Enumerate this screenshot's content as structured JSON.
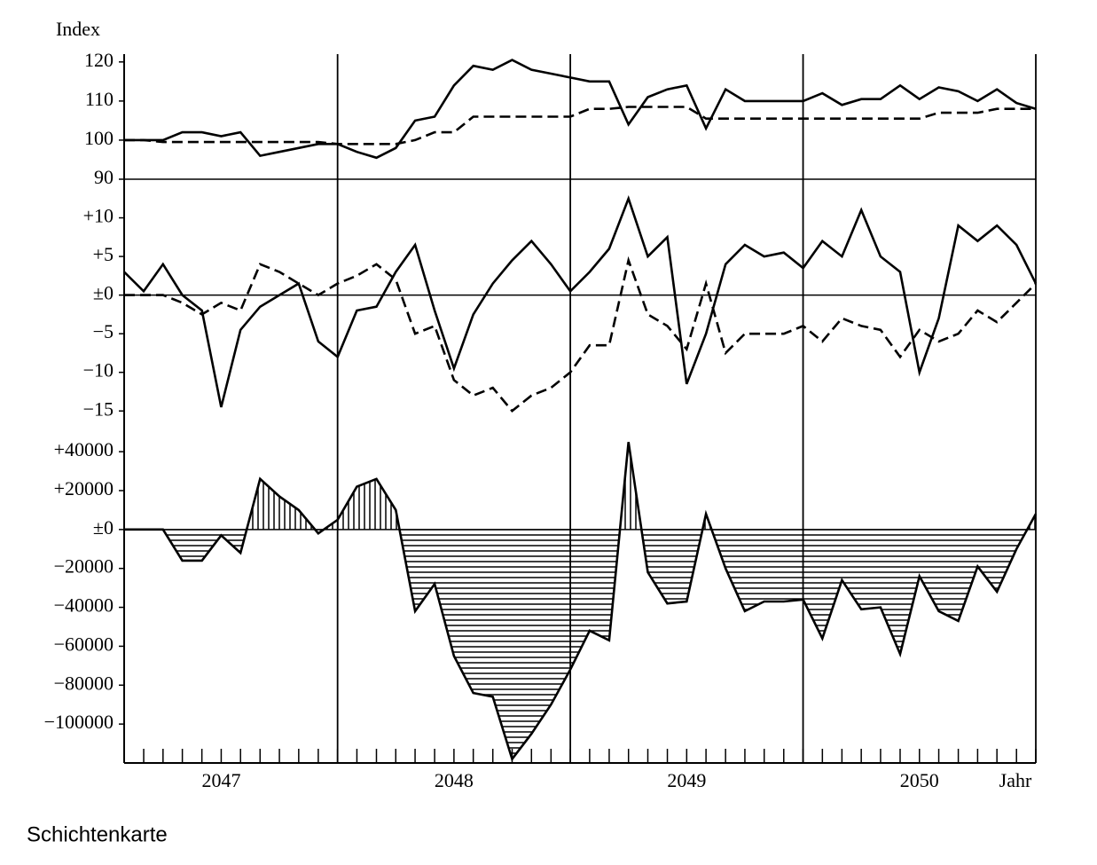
{
  "caption": "Schichtenkarte",
  "chart_data": [
    {
      "type": "line",
      "ylabel": "Index",
      "x": [
        2047.083,
        2047.167,
        2047.25,
        2047.333,
        2047.417,
        2047.5,
        2047.583,
        2047.667,
        2047.75,
        2047.833,
        2047.917,
        2048,
        2048.083,
        2048.167,
        2048.25,
        2048.333,
        2048.417,
        2048.5,
        2048.583,
        2048.667,
        2048.75,
        2048.833,
        2048.917,
        2049,
        2049.083,
        2049.167,
        2049.25,
        2049.333,
        2049.417,
        2049.5,
        2049.583,
        2049.667,
        2049.75,
        2049.833,
        2049.917,
        2050,
        2050.083,
        2050.167,
        2050.25,
        2050.333,
        2050.417,
        2050.5,
        2050.583,
        2050.667,
        2050.75,
        2050.833,
        2050.917,
        2051
      ],
      "xlim": [
        2047.083,
        2051
      ],
      "ylim": [
        90,
        122
      ],
      "yticks": [
        90,
        100,
        110,
        120
      ],
      "hline": 90,
      "year_lines": [
        2048,
        2049,
        2050,
        2051
      ],
      "series": [
        {
          "color": "#000000",
          "style": "solid",
          "values": [
            100,
            100,
            100,
            102,
            102,
            101,
            102,
            96,
            97,
            98,
            99,
            99,
            97,
            95.5,
            98,
            105,
            106,
            114,
            119,
            118,
            120.5,
            118,
            117,
            116,
            115,
            115,
            104,
            111,
            113,
            114,
            103,
            113,
            110,
            110,
            110,
            110,
            112,
            109,
            110.5,
            110.5,
            114,
            110.5,
            113.5,
            112.5,
            110,
            113,
            109.5,
            108
          ]
        },
        {
          "color": "#000000",
          "style": "dashed",
          "values": [
            100,
            100,
            99.5,
            99.5,
            99.5,
            99.5,
            99.5,
            99.5,
            99.5,
            99.5,
            99.5,
            99,
            99,
            99,
            99,
            100,
            102,
            102,
            106,
            106,
            106,
            106,
            106,
            106,
            108,
            108,
            108.5,
            108.5,
            108.5,
            108.5,
            105.5,
            105.5,
            105.5,
            105.5,
            105.5,
            105.5,
            105.5,
            105.5,
            105.5,
            105.5,
            105.5,
            105.5,
            107,
            107,
            107,
            108,
            108,
            108
          ]
        }
      ]
    },
    {
      "type": "line",
      "x": [
        2047.083,
        2047.167,
        2047.25,
        2047.333,
        2047.417,
        2047.5,
        2047.583,
        2047.667,
        2047.75,
        2047.833,
        2047.917,
        2048,
        2048.083,
        2048.167,
        2048.25,
        2048.333,
        2048.417,
        2048.5,
        2048.583,
        2048.667,
        2048.75,
        2048.833,
        2048.917,
        2049,
        2049.083,
        2049.167,
        2049.25,
        2049.333,
        2049.417,
        2049.5,
        2049.583,
        2049.667,
        2049.75,
        2049.833,
        2049.917,
        2050,
        2050.083,
        2050.167,
        2050.25,
        2050.333,
        2050.417,
        2050.5,
        2050.583,
        2050.667,
        2050.75,
        2050.833,
        2050.917,
        2051
      ],
      "xlim": [
        2047.083,
        2051
      ],
      "ylim": [
        -17.5,
        15
      ],
      "yticks": [
        {
          "value": 10,
          "label": "+10"
        },
        {
          "value": 5,
          "label": "+5"
        },
        {
          "value": 0,
          "label": "±0"
        },
        {
          "value": -5,
          "label": "−5"
        },
        {
          "value": -10,
          "label": "−10"
        },
        {
          "value": -15,
          "label": "−15"
        }
      ],
      "hline": 0,
      "year_lines": [
        2048,
        2049,
        2050,
        2051
      ],
      "series": [
        {
          "color": "#000000",
          "style": "solid",
          "values": [
            3,
            0.5,
            4,
            0,
            -2,
            -14.5,
            -4.5,
            -1.5,
            0,
            1.5,
            -6,
            -8,
            -2,
            -1.5,
            3,
            6.5,
            -2,
            -9.5,
            -2.5,
            1.5,
            4.5,
            7,
            4,
            0.5,
            3,
            6,
            12.5,
            5,
            7.5,
            -11.5,
            -5,
            4,
            6.5,
            5,
            5.5,
            3.5,
            7,
            5,
            11,
            5,
            3,
            -10,
            -3,
            9,
            7,
            9,
            6.5,
            1.5
          ]
        },
        {
          "color": "#000000",
          "style": "dashed",
          "values": [
            0,
            0,
            0,
            -1,
            -2.5,
            -1,
            -2,
            4,
            3,
            1.5,
            0,
            1.5,
            2.5,
            4,
            2,
            -5,
            -4,
            -11,
            -13,
            -12,
            -15,
            -13,
            -12,
            -10,
            -6.5,
            -6.5,
            4.5,
            -2.5,
            -4,
            -7,
            1.5,
            -7.5,
            -5,
            -5,
            -5,
            -4,
            -6,
            -3,
            -4,
            -4.5,
            -8,
            -4.5,
            -6,
            -5,
            -2,
            -3.5,
            -1,
            1.5
          ]
        }
      ]
    },
    {
      "type": "area",
      "xlabel": "Jahr",
      "x": [
        2047.083,
        2047.167,
        2047.25,
        2047.333,
        2047.417,
        2047.5,
        2047.583,
        2047.667,
        2047.75,
        2047.833,
        2047.917,
        2048,
        2048.083,
        2048.167,
        2048.25,
        2048.333,
        2048.417,
        2048.5,
        2048.583,
        2048.667,
        2048.75,
        2048.833,
        2048.917,
        2049,
        2049.083,
        2049.167,
        2049.25,
        2049.333,
        2049.417,
        2049.5,
        2049.583,
        2049.667,
        2049.75,
        2049.833,
        2049.917,
        2050,
        2050.083,
        2050.167,
        2050.25,
        2050.333,
        2050.417,
        2050.5,
        2050.583,
        2050.667,
        2050.75,
        2050.833,
        2050.917,
        2051
      ],
      "xlim": [
        2047.083,
        2051
      ],
      "ylim": [
        -120000,
        51000
      ],
      "xticks": [
        {
          "value": 2047.5,
          "label": "2047"
        },
        {
          "value": 2048.5,
          "label": "2048"
        },
        {
          "value": 2049.5,
          "label": "2049"
        },
        {
          "value": 2050.5,
          "label": "2050"
        }
      ],
      "yticks": [
        {
          "value": 40000,
          "label": "+40000"
        },
        {
          "value": 20000,
          "label": "+20000"
        },
        {
          "value": 0,
          "label": "±0"
        },
        {
          "value": -20000,
          "label": "−20000"
        },
        {
          "value": -40000,
          "label": "−40000"
        },
        {
          "value": -60000,
          "label": "−60000"
        },
        {
          "value": -80000,
          "label": "−80000"
        },
        {
          "value": -100000,
          "label": "−100000"
        }
      ],
      "hline": 0,
      "year_lines": [
        2048,
        2049,
        2050,
        2051
      ],
      "series": [
        {
          "color": "#000000",
          "style": "solid",
          "values": [
            0,
            0,
            0,
            -16000,
            -16000,
            -3000,
            -12000,
            26000,
            17000,
            10000,
            -2000,
            5000,
            22000,
            26000,
            10000,
            -42000,
            -28000,
            -65000,
            -84000,
            -86000,
            -118000,
            -105000,
            -90000,
            -72000,
            -52000,
            -57000,
            45000,
            -22000,
            -38000,
            -37000,
            8000,
            -20000,
            -42000,
            -37000,
            -37000,
            -36000,
            -56000,
            -26000,
            -41000,
            -40000,
            -64000,
            -24000,
            -42000,
            -47000,
            -19000,
            -32000,
            -10000,
            8000
          ]
        }
      ]
    }
  ]
}
